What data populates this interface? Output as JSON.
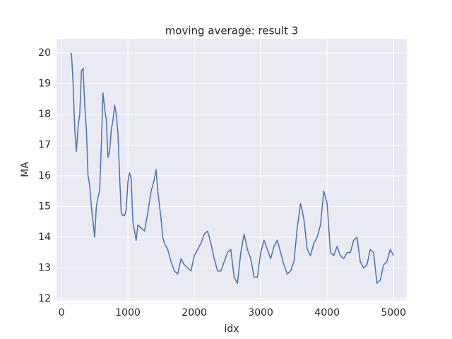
{
  "chart_data": {
    "type": "line",
    "title": "moving average: result 3",
    "x_label": "idx",
    "y_label": "MA",
    "x": [
      150,
      175,
      200,
      225,
      250,
      275,
      300,
      325,
      350,
      375,
      400,
      425,
      450,
      475,
      500,
      525,
      550,
      575,
      600,
      625,
      650,
      675,
      700,
      725,
      750,
      775,
      800,
      825,
      850,
      875,
      900,
      925,
      950,
      975,
      1000,
      1025,
      1050,
      1075,
      1100,
      1125,
      1150,
      1200,
      1250,
      1300,
      1350,
      1400,
      1425,
      1450,
      1500,
      1525,
      1550,
      1600,
      1650,
      1700,
      1750,
      1800,
      1850,
      1900,
      1950,
      2000,
      2050,
      2100,
      2150,
      2200,
      2250,
      2300,
      2350,
      2400,
      2450,
      2500,
      2550,
      2600,
      2650,
      2700,
      2750,
      2800,
      2850,
      2900,
      2950,
      3000,
      3050,
      3100,
      3150,
      3200,
      3250,
      3300,
      3350,
      3400,
      3450,
      3500,
      3550,
      3600,
      3650,
      3700,
      3750,
      3800,
      3850,
      3900,
      3950,
      4000,
      4050,
      4100,
      4150,
      4200,
      4250,
      4300,
      4350,
      4400,
      4450,
      4500,
      4550,
      4600,
      4650,
      4700,
      4750,
      4800,
      4850,
      4900,
      4950,
      5000
    ],
    "series": [
      {
        "name": "MA",
        "color": "#4c72b0",
        "values": [
          20.0,
          19.0,
          17.5,
          16.8,
          17.6,
          18.0,
          19.4,
          19.5,
          18.3,
          17.5,
          16.0,
          15.7,
          15.0,
          14.5,
          14.0,
          15.0,
          15.3,
          15.5,
          17.0,
          18.7,
          18.2,
          17.8,
          16.6,
          16.8,
          17.5,
          17.8,
          18.3,
          18.0,
          17.4,
          16.0,
          14.8,
          14.7,
          14.7,
          14.9,
          15.8,
          16.1,
          15.9,
          14.5,
          14.2,
          13.9,
          14.4,
          14.3,
          14.2,
          14.8,
          15.5,
          15.9,
          16.2,
          15.5,
          14.6,
          14.0,
          13.8,
          13.6,
          13.2,
          12.9,
          12.8,
          13.3,
          13.1,
          13.0,
          12.9,
          13.4,
          13.6,
          13.8,
          14.1,
          14.2,
          13.8,
          13.3,
          12.9,
          12.9,
          13.2,
          13.5,
          13.6,
          12.7,
          12.5,
          13.5,
          14.1,
          13.6,
          13.3,
          12.7,
          12.7,
          13.5,
          13.9,
          13.6,
          13.3,
          13.7,
          13.9,
          13.5,
          13.1,
          12.8,
          12.9,
          13.2,
          14.3,
          15.1,
          14.6,
          13.6,
          13.4,
          13.8,
          14.0,
          14.4,
          15.5,
          15.1,
          13.5,
          13.4,
          13.7,
          13.4,
          13.3,
          13.5,
          13.5,
          13.9,
          14.0,
          13.2,
          13.0,
          13.1,
          13.6,
          13.5,
          12.5,
          12.6,
          13.1,
          13.2,
          13.6,
          13.4
        ]
      }
    ],
    "xlim": [
      -75,
      5200
    ],
    "ylim": [
      11.95,
      20.46
    ],
    "xticks": [
      0,
      1000,
      2000,
      3000,
      4000,
      5000
    ],
    "yticks": [
      12,
      13,
      14,
      15,
      16,
      17,
      18,
      19,
      20
    ],
    "grid": true,
    "background": "#eaeaf2"
  }
}
